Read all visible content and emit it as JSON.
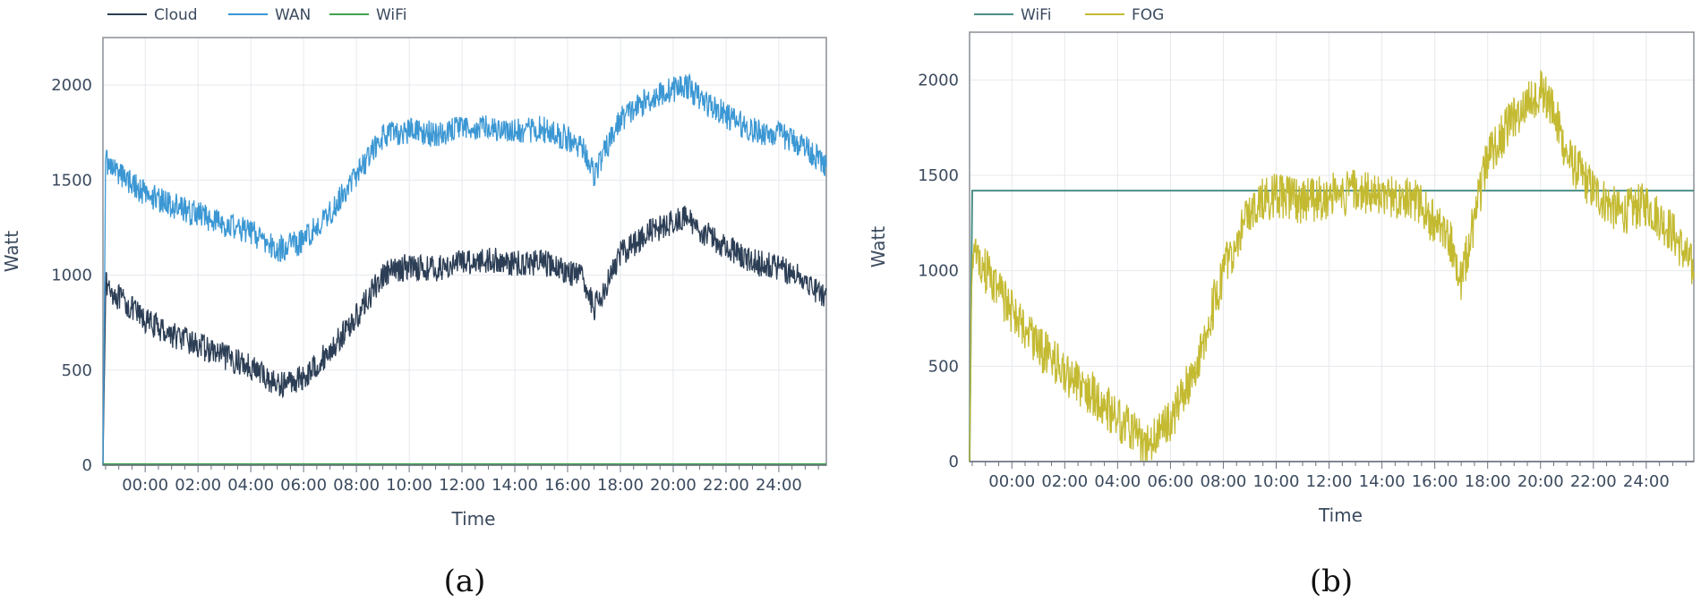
{
  "chart_data": [
    {
      "type": "line",
      "caption": "(a)",
      "xlabel": "Time",
      "ylabel": "Watt",
      "ylim": [
        0,
        2250
      ],
      "yticks": [
        0,
        500,
        1000,
        1500,
        2000
      ],
      "xlim": [
        -1.6,
        25.8
      ],
      "xticks": [
        "00:00",
        "02:00",
        "04:00",
        "06:00",
        "08:00",
        "10:00",
        "12:00",
        "14:00",
        "16:00",
        "18:00",
        "20:00",
        "22:00",
        "24:00"
      ],
      "grid": true,
      "legend_position": "top-left",
      "series": [
        {
          "name": "Cloud",
          "color": "#2c3e55",
          "x": [
            -1.6,
            -1.5,
            -1,
            0,
            1,
            2,
            3,
            4,
            5,
            6,
            7,
            8,
            9,
            10,
            11,
            12,
            13,
            14,
            15,
            16,
            16.6,
            17,
            18,
            19,
            20,
            20.5,
            21,
            22,
            23,
            24,
            25,
            25.8
          ],
          "y": [
            0,
            950,
            880,
            760,
            690,
            630,
            570,
            520,
            420,
            460,
            600,
            780,
            1000,
            1050,
            1030,
            1070,
            1080,
            1060,
            1070,
            1020,
            980,
            820,
            1110,
            1220,
            1280,
            1300,
            1240,
            1150,
            1070,
            1040,
            980,
            870
          ],
          "noise": 70
        },
        {
          "name": "WAN",
          "color": "#3b97d3",
          "x": [
            -1.6,
            -1.5,
            -1,
            0,
            1,
            2,
            3,
            4,
            5,
            6,
            7,
            8,
            9,
            10,
            11,
            12,
            13,
            14,
            15,
            16,
            16.6,
            17,
            18,
            19,
            20,
            20.5,
            21,
            22,
            23,
            24,
            25,
            25.8
          ],
          "y": [
            0,
            1600,
            1540,
            1430,
            1370,
            1320,
            1270,
            1230,
            1130,
            1180,
            1330,
            1530,
            1730,
            1760,
            1740,
            1770,
            1780,
            1760,
            1770,
            1720,
            1670,
            1530,
            1820,
            1920,
            1980,
            2000,
            1930,
            1840,
            1760,
            1740,
            1680,
            1570
          ],
          "noise": 70
        },
        {
          "name": "WiFi",
          "color": "#3fa34d",
          "x": [
            -1.6,
            25.8
          ],
          "y": [
            5,
            5
          ],
          "noise": 0
        }
      ]
    },
    {
      "type": "line",
      "caption": "(b)",
      "xlabel": "Time",
      "ylabel": "Watt",
      "ylim": [
        0,
        2250
      ],
      "yticks": [
        0,
        500,
        1000,
        1500,
        2000
      ],
      "xlim": [
        -1.6,
        25.8
      ],
      "xticks": [
        "00:00",
        "02:00",
        "04:00",
        "06:00",
        "08:00",
        "10:00",
        "12:00",
        "14:00",
        "16:00",
        "18:00",
        "20:00",
        "22:00",
        "24:00"
      ],
      "grid": true,
      "legend_position": "top-left",
      "series": [
        {
          "name": "WiFi",
          "color": "#4a8f86",
          "x": [
            -1.6,
            -1.5,
            25.8
          ],
          "y": [
            0,
            1420,
            1420
          ],
          "noise": 0
        },
        {
          "name": "FOG",
          "color": "#c4ba32",
          "x": [
            -1.6,
            -1.5,
            -1,
            0,
            1,
            2,
            3,
            4,
            5,
            6,
            7,
            8,
            9,
            10,
            11,
            12,
            13,
            14,
            15,
            16,
            16.6,
            17,
            18,
            19,
            20,
            20.5,
            21,
            22,
            23,
            24,
            25,
            25.8
          ],
          "y": [
            0,
            1100,
            1000,
            780,
            600,
            470,
            360,
            230,
            90,
            200,
            520,
            1000,
            1330,
            1400,
            1360,
            1390,
            1420,
            1380,
            1400,
            1250,
            1150,
            950,
            1600,
            1800,
            1950,
            1850,
            1600,
            1420,
            1300,
            1350,
            1200,
            1000
          ],
          "noise": 120
        }
      ]
    }
  ]
}
